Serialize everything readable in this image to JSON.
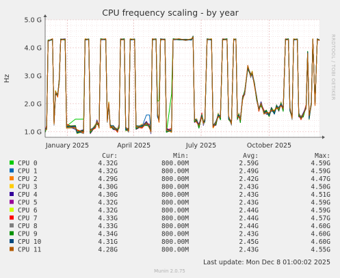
{
  "chart_data": {
    "type": "line",
    "title": "CPU frequency scaling - by year",
    "ylabel": "Hz",
    "side_label": "RRDTOOL / TOBI OETIKER",
    "ylim": [
      0.8,
      5.0
    ],
    "y_ticks": [
      "1.0 G",
      "2.0 G",
      "3.0 G",
      "4.0 G",
      "5.0 G"
    ],
    "y_tick_values": [
      1.0,
      2.0,
      3.0,
      4.0,
      5.0
    ],
    "x_range": [
      "2024-12-02",
      "2025-12-08"
    ],
    "x_ticks": [
      {
        "label": "January 2025",
        "date": "2025-01-01"
      },
      {
        "label": "April 2025",
        "date": "2025-04-01"
      },
      {
        "label": "July 2025",
        "date": "2025-07-01"
      },
      {
        "label": "October 2025",
        "date": "2025-10-01"
      }
    ],
    "grid": true,
    "background": "#ffffff",
    "grid_color": "#e3b0b0",
    "legend_headers": [
      "Cur:",
      "Min:",
      "Avg:",
      "Max:"
    ],
    "series": [
      {
        "name": "CPU 0",
        "color": "#00cc00",
        "cur": "4.32G",
        "min": "800.00M",
        "avg": "2.59G",
        "max": "4.59G"
      },
      {
        "name": "CPU 1",
        "color": "#0066b3",
        "cur": "4.32G",
        "min": "800.00M",
        "avg": "2.49G",
        "max": "4.59G"
      },
      {
        "name": "CPU 2",
        "color": "#ff8000",
        "cur": "4.29G",
        "min": "800.00M",
        "avg": "2.42G",
        "max": "4.47G"
      },
      {
        "name": "CPU 3",
        "color": "#ffcc00",
        "cur": "4.30G",
        "min": "800.00M",
        "avg": "2.43G",
        "max": "4.50G"
      },
      {
        "name": "CPU 4",
        "color": "#330099",
        "cur": "4.30G",
        "min": "800.00M",
        "avg": "2.43G",
        "max": "4.51G"
      },
      {
        "name": "CPU 5",
        "color": "#990099",
        "cur": "4.32G",
        "min": "800.00M",
        "avg": "2.43G",
        "max": "4.59G"
      },
      {
        "name": "CPU 6",
        "color": "#ccff00",
        "cur": "4.32G",
        "min": "800.00M",
        "avg": "2.44G",
        "max": "4.59G"
      },
      {
        "name": "CPU 7",
        "color": "#ff0000",
        "cur": "4.33G",
        "min": "800.00M",
        "avg": "2.44G",
        "max": "4.57G"
      },
      {
        "name": "CPU 8",
        "color": "#808080",
        "cur": "4.33G",
        "min": "800.00M",
        "avg": "2.44G",
        "max": "4.60G"
      },
      {
        "name": "CPU 9",
        "color": "#008f00",
        "cur": "4.34G",
        "min": "800.00M",
        "avg": "2.43G",
        "max": "4.60G"
      },
      {
        "name": "CPU 10",
        "color": "#00487d",
        "cur": "4.31G",
        "min": "800.00M",
        "avg": "2.45G",
        "max": "4.60G"
      },
      {
        "name": "CPU 11",
        "color": "#b35a00",
        "cur": "4.28G",
        "min": "800.00M",
        "avg": "2.43G",
        "max": "4.55G"
      }
    ],
    "profile": [
      [
        "2024-12-02",
        1.05
      ],
      [
        "2024-12-04",
        1.15
      ],
      [
        "2024-12-06",
        4.25
      ],
      [
        "2024-12-12",
        4.3
      ],
      [
        "2024-12-14",
        1.3
      ],
      [
        "2024-12-16",
        2.4
      ],
      [
        "2024-12-19",
        2.3
      ],
      [
        "2024-12-21",
        2.8
      ],
      [
        "2024-12-23",
        4.3
      ],
      [
        "2024-12-29",
        4.3
      ],
      [
        "2024-12-31",
        1.2
      ],
      [
        "2025-01-12",
        1.15
      ],
      [
        "2025-01-14",
        1.0
      ],
      [
        "2025-01-23",
        1.0
      ],
      [
        "2025-01-25",
        4.3
      ],
      [
        "2025-01-30",
        4.3
      ],
      [
        "2025-02-01",
        1.0
      ],
      [
        "2025-02-08",
        1.2
      ],
      [
        "2025-02-10",
        1.35
      ],
      [
        "2025-02-13",
        1.2
      ],
      [
        "2025-02-15",
        4.3
      ],
      [
        "2025-02-22",
        4.3
      ],
      [
        "2025-02-24",
        1.4
      ],
      [
        "2025-02-26",
        2.0
      ],
      [
        "2025-02-28",
        1.2
      ],
      [
        "2025-03-04",
        1.15
      ],
      [
        "2025-03-10",
        1.05
      ],
      [
        "2025-03-12",
        1.2
      ],
      [
        "2025-03-14",
        4.3
      ],
      [
        "2025-03-19",
        4.3
      ],
      [
        "2025-03-21",
        1.1
      ],
      [
        "2025-03-25",
        1.05
      ],
      [
        "2025-03-27",
        4.3
      ],
      [
        "2025-04-02",
        4.3
      ],
      [
        "2025-04-04",
        1.15
      ],
      [
        "2025-04-12",
        1.2
      ],
      [
        "2025-04-18",
        1.3
      ],
      [
        "2025-04-22",
        1.2
      ],
      [
        "2025-04-24",
        1.0
      ],
      [
        "2025-04-26",
        4.3
      ],
      [
        "2025-05-01",
        4.3
      ],
      [
        "2025-05-03",
        1.6
      ],
      [
        "2025-05-05",
        1.4
      ],
      [
        "2025-05-07",
        4.3
      ],
      [
        "2025-05-13",
        4.3
      ],
      [
        "2025-05-15",
        1.05
      ],
      [
        "2025-05-22",
        1.05
      ],
      [
        "2025-05-24",
        4.3
      ],
      [
        "2025-06-01",
        4.3
      ],
      [
        "2025-06-10",
        4.28
      ],
      [
        "2025-06-18",
        4.3
      ],
      [
        "2025-06-20",
        4.4
      ],
      [
        "2025-06-22",
        1.4
      ],
      [
        "2025-06-25",
        1.4
      ],
      [
        "2025-06-28",
        1.2
      ],
      [
        "2025-07-02",
        1.6
      ],
      [
        "2025-07-04",
        1.3
      ],
      [
        "2025-07-06",
        1.4
      ],
      [
        "2025-07-09",
        4.3
      ],
      [
        "2025-07-15",
        4.3
      ],
      [
        "2025-07-17",
        1.2
      ],
      [
        "2025-07-21",
        1.3
      ],
      [
        "2025-07-24",
        1.6
      ],
      [
        "2025-07-27",
        1.5
      ],
      [
        "2025-07-30",
        4.3
      ],
      [
        "2025-08-05",
        4.3
      ],
      [
        "2025-08-07",
        1.5
      ],
      [
        "2025-08-11",
        1.3
      ],
      [
        "2025-08-14",
        4.3
      ],
      [
        "2025-08-17",
        4.3
      ],
      [
        "2025-08-19",
        1.5
      ],
      [
        "2025-08-21",
        1.6
      ],
      [
        "2025-08-23",
        1.4
      ],
      [
        "2025-08-26",
        2.2
      ],
      [
        "2025-08-29",
        2.4
      ],
      [
        "2025-09-02",
        3.3
      ],
      [
        "2025-09-06",
        3.0
      ],
      [
        "2025-09-08",
        3.1
      ],
      [
        "2025-09-11",
        2.7
      ],
      [
        "2025-09-14",
        2.2
      ],
      [
        "2025-09-17",
        1.8
      ],
      [
        "2025-09-20",
        2.0
      ],
      [
        "2025-09-24",
        1.7
      ],
      [
        "2025-09-27",
        1.7
      ],
      [
        "2025-10-01",
        1.6
      ],
      [
        "2025-10-04",
        1.8
      ],
      [
        "2025-10-08",
        1.7
      ],
      [
        "2025-10-11",
        1.9
      ],
      [
        "2025-10-14",
        1.8
      ],
      [
        "2025-10-17",
        2.0
      ],
      [
        "2025-10-20",
        1.8
      ],
      [
        "2025-10-23",
        4.3
      ],
      [
        "2025-10-27",
        4.3
      ],
      [
        "2025-10-29",
        1.8
      ],
      [
        "2025-11-01",
        1.5
      ],
      [
        "2025-11-03",
        4.3
      ],
      [
        "2025-11-08",
        4.3
      ],
      [
        "2025-11-10",
        1.6
      ],
      [
        "2025-11-13",
        1.5
      ],
      [
        "2025-11-16",
        1.6
      ],
      [
        "2025-11-20",
        1.9
      ],
      [
        "2025-11-22",
        3.8
      ],
      [
        "2025-11-24",
        1.5
      ],
      [
        "2025-11-27",
        2.0
      ],
      [
        "2025-11-29",
        4.3
      ],
      [
        "2025-12-02",
        2.0
      ],
      [
        "2025-12-05",
        4.3
      ],
      [
        "2025-12-08",
        4.28
      ]
    ],
    "cpu0_elevated_segments": [
      {
        "from": "2025-01-02",
        "to": "2025-01-23",
        "value": 1.45
      },
      {
        "from": "2025-05-02",
        "to": "2025-05-06",
        "value": 2.1
      },
      {
        "from": "2025-05-16",
        "to": "2025-05-23",
        "value": 2.35
      }
    ],
    "last_update": "Last update: Mon Dec  8 01:00:02 2025",
    "footer": "Munin 2.0.75"
  }
}
